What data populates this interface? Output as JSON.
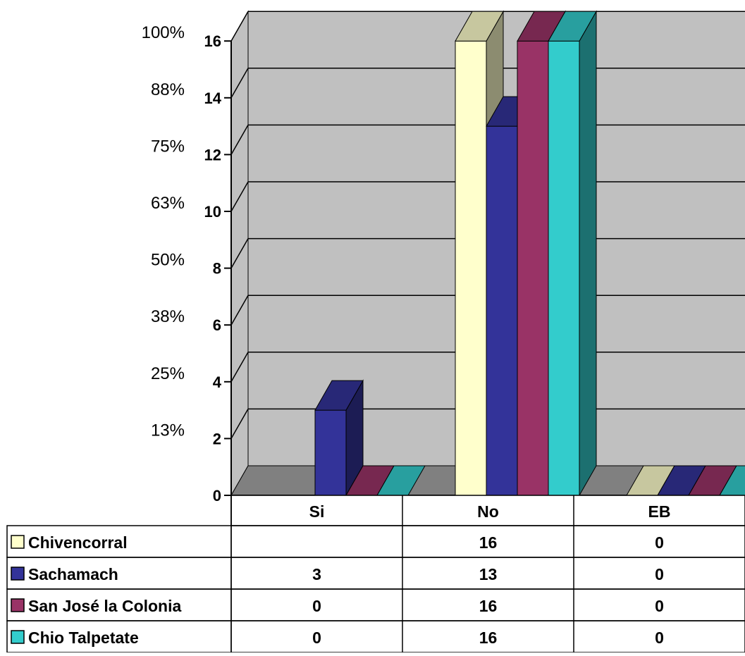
{
  "chart_data": {
    "type": "bar",
    "title": "",
    "xlabel": "",
    "ylabel": "",
    "ylim": [
      0,
      16
    ],
    "y_ticks": [
      0,
      2,
      4,
      6,
      8,
      10,
      12,
      14,
      16
    ],
    "secondary_ticks": [
      "13%",
      "25%",
      "38%",
      "50%",
      "63%",
      "75%",
      "88%",
      "100%"
    ],
    "categories": [
      "Si",
      "No",
      "EB"
    ],
    "grid": true,
    "legend": "data-table",
    "series": [
      {
        "name": "Chivencorral",
        "values": [
          null,
          16,
          0
        ],
        "labels": [
          "",
          "16",
          "0"
        ],
        "color": "#ffffcc"
      },
      {
        "name": "Sachamach",
        "values": [
          3,
          13,
          0
        ],
        "labels": [
          "3",
          "13",
          "0"
        ],
        "color": "#333399"
      },
      {
        "name": "San José la Colonia",
        "values": [
          0,
          16,
          0
        ],
        "labels": [
          "0",
          "16",
          "0"
        ],
        "color": "#993366"
      },
      {
        "name": "Chio Talpetate",
        "values": [
          0,
          16,
          0
        ],
        "labels": [
          "0",
          "16",
          "0"
        ],
        "color": "#33cccc"
      }
    ]
  },
  "colors": {
    "wall": "#c0c0c0",
    "floor": "#808080",
    "grid": "#000000"
  }
}
